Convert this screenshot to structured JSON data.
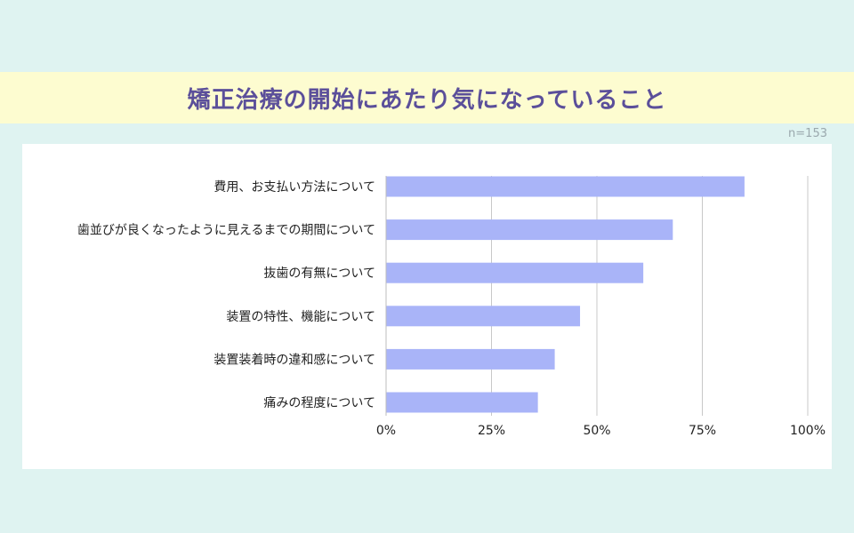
{
  "title": "矯正治療の開始にあたり気になっていること",
  "sample_size": "n=153",
  "colors": {
    "bar": "#a9b4f8",
    "grid": "#c8c8c8",
    "title": "#5b4f9a",
    "band": "#fdfcd0",
    "background": "#dff3f1"
  },
  "chart_data": {
    "type": "bar",
    "orientation": "horizontal",
    "categories": [
      "費用、お支払い方法について",
      "歯並びが良くなったように見えるまでの期間について",
      "抜歯の有無について",
      "装置の特性、機能について",
      "装置装着時の違和感について",
      "痛みの程度について"
    ],
    "values": [
      85,
      68,
      61,
      46,
      40,
      36
    ],
    "unit": "%",
    "xlim": [
      0,
      100
    ],
    "xticks": [
      0,
      25,
      50,
      75,
      100
    ],
    "xtick_labels": [
      "0%",
      "25%",
      "50%",
      "75%",
      "100%"
    ],
    "grid": true,
    "legend": "none"
  }
}
